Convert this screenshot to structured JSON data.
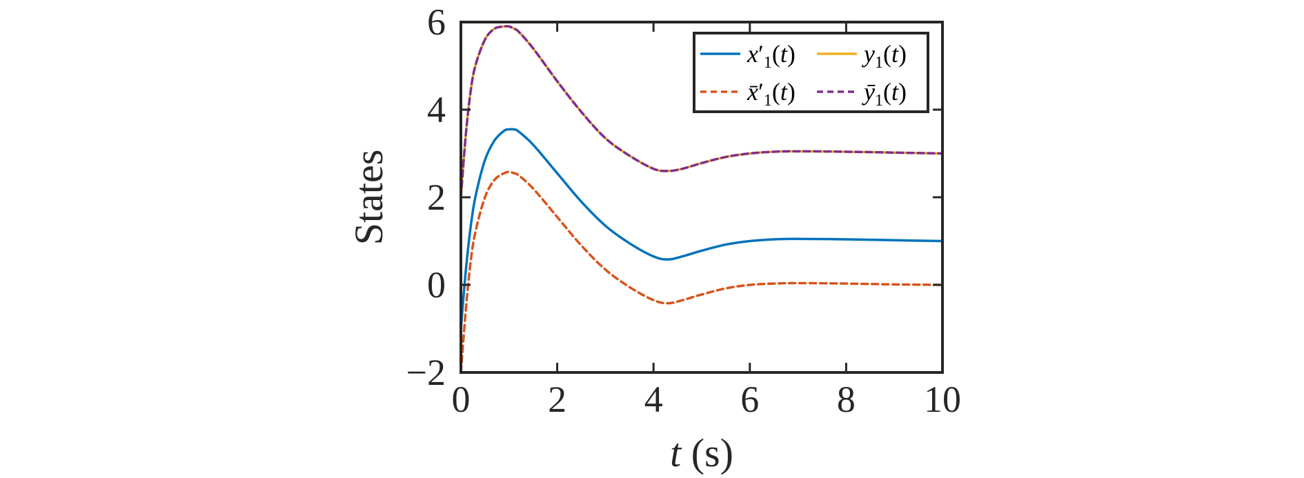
{
  "chart_data": {
    "type": "line",
    "xlabel": "t (s)",
    "ylabel": "States",
    "xlim": [
      0,
      10
    ],
    "ylim": [
      -2,
      6
    ],
    "xticks": [
      0,
      2,
      4,
      6,
      8,
      10
    ],
    "xtick_labels": [
      "0",
      "2",
      "4",
      "6",
      "8",
      "10"
    ],
    "yticks": [
      -2,
      0,
      2,
      4,
      6
    ],
    "ytick_labels": [
      "−2",
      "0",
      "2",
      "4",
      "6"
    ],
    "grid": false,
    "legend_position": "top-right",
    "x": [
      0,
      0.1,
      0.2,
      0.3,
      0.5,
      0.7,
      0.9,
      1.0,
      1.1,
      1.2,
      1.5,
      2.0,
      2.5,
      3.0,
      3.5,
      4.0,
      4.3,
      4.6,
      5.0,
      5.5,
      6.0,
      6.5,
      7.0,
      8.0,
      9.0,
      10.0
    ],
    "series": [
      {
        "name": "x′1(t)",
        "color": "#0072BD",
        "dash": "solid",
        "values": [
          -1.0,
          0.3,
          1.3,
          2.0,
          2.85,
          3.3,
          3.52,
          3.55,
          3.55,
          3.5,
          3.2,
          2.55,
          1.9,
          1.35,
          0.95,
          0.65,
          0.58,
          0.65,
          0.78,
          0.92,
          1.0,
          1.04,
          1.05,
          1.04,
          1.02,
          1.0
        ]
      },
      {
        "name": "y1(t)",
        "color": "#EDB120",
        "dash": "solid",
        "values": [
          2.0,
          3.4,
          4.4,
          5.0,
          5.6,
          5.85,
          5.9,
          5.9,
          5.85,
          5.78,
          5.4,
          4.65,
          3.95,
          3.35,
          2.95,
          2.65,
          2.6,
          2.65,
          2.78,
          2.92,
          3.0,
          3.04,
          3.05,
          3.04,
          3.02,
          3.0
        ]
      },
      {
        "name": "x̄′1(t)",
        "color": "#D95319",
        "dash": "dashed",
        "values": [
          -2.0,
          -0.6,
          0.5,
          1.2,
          2.0,
          2.4,
          2.55,
          2.58,
          2.55,
          2.5,
          2.2,
          1.55,
          0.9,
          0.35,
          -0.05,
          -0.35,
          -0.42,
          -0.35,
          -0.22,
          -0.08,
          0.0,
          0.03,
          0.04,
          0.03,
          0.01,
          0.0
        ]
      },
      {
        "name": "ȳ1(t)",
        "color": "#7E2F8E",
        "dash": "dashed",
        "values": [
          2.0,
          3.4,
          4.4,
          5.0,
          5.6,
          5.85,
          5.9,
          5.9,
          5.85,
          5.78,
          5.4,
          4.65,
          3.95,
          3.35,
          2.95,
          2.65,
          2.6,
          2.65,
          2.78,
          2.92,
          3.0,
          3.04,
          3.05,
          3.04,
          3.02,
          3.0
        ]
      }
    ]
  }
}
